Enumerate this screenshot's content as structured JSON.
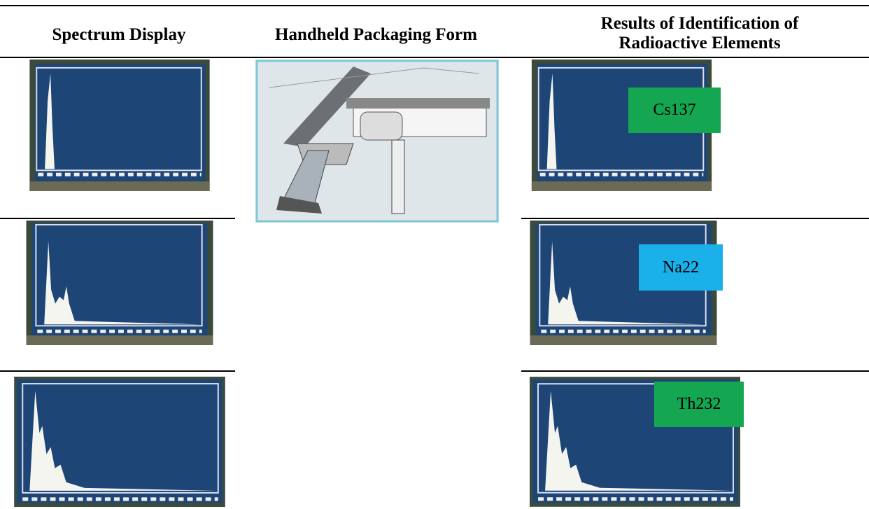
{
  "table": {
    "headers": [
      "Spectrum Display",
      "Handheld Packaging Form",
      "Results of Identification of Radioactive Elements"
    ],
    "results": [
      "Cs137",
      "Na22",
      "Th232"
    ]
  }
}
